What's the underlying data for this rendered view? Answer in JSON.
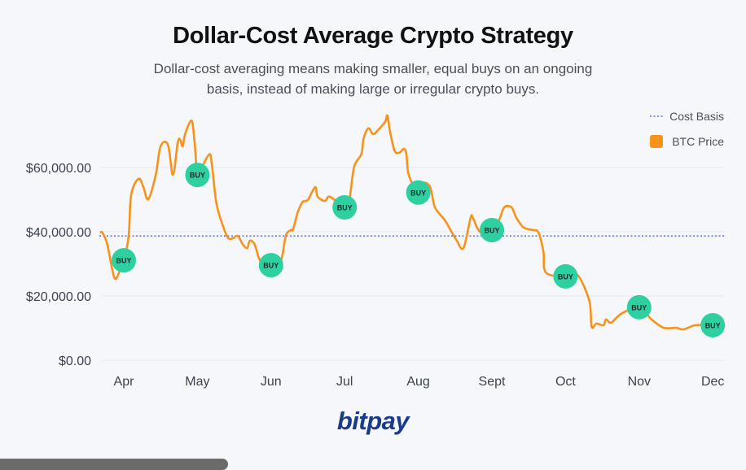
{
  "title": "Dollar-Cost Average Crypto Strategy",
  "subtitle": "Dollar-cost averaging means making smaller, equal buys on an ongoing basis, instead of making large or irregular crypto buys.",
  "logo": "bitpay",
  "chart_data": {
    "type": "line",
    "xlabel": "",
    "ylabel": "",
    "ylim": [
      0,
      70000
    ],
    "y_ticks": [
      0,
      20000,
      40000,
      60000
    ],
    "y_tick_labels": [
      "$0.00",
      "$20,000.00",
      "$40,000.00",
      "$60,000.00"
    ],
    "x_ticks": [
      "04-01",
      "05-01",
      "06-01",
      "07-01",
      "08-01",
      "09-01",
      "10-01",
      "11-01",
      "12-01"
    ],
    "x_tick_labels": [
      "Apr",
      "May",
      "Jun",
      "Jul",
      "Aug",
      "Sept",
      "Oct",
      "Nov",
      "Dec"
    ],
    "grid": "horizontal",
    "legend": {
      "placement": "top-right",
      "entries": [
        "Cost Basis",
        "BTC Price"
      ]
    },
    "colors": {
      "btc_price": "#f7931a",
      "cost_basis": "#3f51d8",
      "buy_marker": "#2ecfa0",
      "grid": "#e6e9f5"
    },
    "cost_basis": {
      "name": "Cost Basis",
      "value": 38700
    },
    "series": [
      {
        "name": "BTC Price",
        "points": [
          [
            "03-22",
            39700
          ],
          [
            "03-23",
            39700
          ],
          [
            "03-25",
            36200
          ],
          [
            "03-28",
            25800
          ],
          [
            "03-30",
            27300
          ],
          [
            "04-01",
            31100
          ],
          [
            "04-03",
            38700
          ],
          [
            "04-04",
            51400
          ],
          [
            "04-07",
            56500
          ],
          [
            "04-09",
            53900
          ],
          [
            "04-11",
            50100
          ],
          [
            "04-14",
            57700
          ],
          [
            "04-16",
            66600
          ],
          [
            "04-19",
            67100
          ],
          [
            "04-21",
            57700
          ],
          [
            "04-23",
            67800
          ],
          [
            "04-24",
            68600
          ],
          [
            "04-25",
            66600
          ],
          [
            "04-26",
            70400
          ],
          [
            "04-28",
            74200
          ],
          [
            "04-29",
            73700
          ],
          [
            "04-30",
            66600
          ],
          [
            "05-01",
            57700
          ],
          [
            "05-03",
            60300
          ],
          [
            "05-06",
            64100
          ],
          [
            "05-07",
            61500
          ],
          [
            "05-09",
            48900
          ],
          [
            "05-12",
            41300
          ],
          [
            "05-14",
            38000
          ],
          [
            "05-16",
            38000
          ],
          [
            "05-18",
            38700
          ],
          [
            "05-20",
            36200
          ],
          [
            "05-22",
            34900
          ],
          [
            "05-23",
            37200
          ],
          [
            "05-25",
            36200
          ],
          [
            "05-27",
            31600
          ],
          [
            "05-29",
            29900
          ],
          [
            "06-01",
            29600
          ],
          [
            "06-05",
            31100
          ],
          [
            "06-07",
            38700
          ],
          [
            "06-09",
            40500
          ],
          [
            "06-10",
            40800
          ],
          [
            "06-12",
            46300
          ],
          [
            "06-14",
            49400
          ],
          [
            "06-16",
            49900
          ],
          [
            "06-19",
            53900
          ],
          [
            "06-20",
            50900
          ],
          [
            "06-23",
            49600
          ],
          [
            "06-25",
            50900
          ],
          [
            "07-01",
            47600
          ],
          [
            "07-03",
            50100
          ],
          [
            "07-05",
            60300
          ],
          [
            "07-08",
            64100
          ],
          [
            "07-09",
            69100
          ],
          [
            "07-11",
            72200
          ],
          [
            "07-13",
            70400
          ],
          [
            "07-15",
            71600
          ],
          [
            "07-18",
            74200
          ],
          [
            "07-19",
            76200
          ],
          [
            "07-20",
            71600
          ],
          [
            "07-22",
            65300
          ],
          [
            "07-24",
            64600
          ],
          [
            "07-26",
            65800
          ],
          [
            "07-27",
            64100
          ],
          [
            "07-28",
            57700
          ],
          [
            "08-01",
            52200
          ],
          [
            "08-03",
            55200
          ],
          [
            "08-06",
            53900
          ],
          [
            "08-08",
            47600
          ],
          [
            "08-12",
            43800
          ],
          [
            "08-14",
            41300
          ],
          [
            "08-17",
            37500
          ],
          [
            "08-20",
            34900
          ],
          [
            "08-23",
            44300
          ],
          [
            "08-24",
            44300
          ],
          [
            "08-27",
            40000
          ],
          [
            "09-01",
            40500
          ],
          [
            "09-04",
            43800
          ],
          [
            "09-06",
            47600
          ],
          [
            "09-09",
            47600
          ],
          [
            "09-11",
            44300
          ],
          [
            "09-14",
            41300
          ],
          [
            "09-18",
            40500
          ],
          [
            "09-20",
            39700
          ],
          [
            "09-22",
            33700
          ],
          [
            "09-23",
            27300
          ],
          [
            "10-01",
            26100
          ],
          [
            "10-06",
            26600
          ],
          [
            "10-11",
            18500
          ],
          [
            "10-12",
            10400
          ],
          [
            "10-14",
            11400
          ],
          [
            "10-17",
            10900
          ],
          [
            "10-18",
            12700
          ],
          [
            "10-20",
            11600
          ],
          [
            "10-22",
            12900
          ],
          [
            "10-25",
            14700
          ],
          [
            "11-01",
            16500
          ],
          [
            "11-06",
            12700
          ],
          [
            "11-11",
            10100
          ],
          [
            "11-16",
            10100
          ],
          [
            "11-19",
            9600
          ],
          [
            "11-24",
            10900
          ],
          [
            "12-01",
            10900
          ]
        ]
      }
    ],
    "buy_markers": {
      "label": "BUY",
      "dates": [
        "04-01",
        "05-01",
        "06-01",
        "07-01",
        "08-01",
        "09-01",
        "10-01",
        "11-01",
        "12-01"
      ]
    }
  }
}
